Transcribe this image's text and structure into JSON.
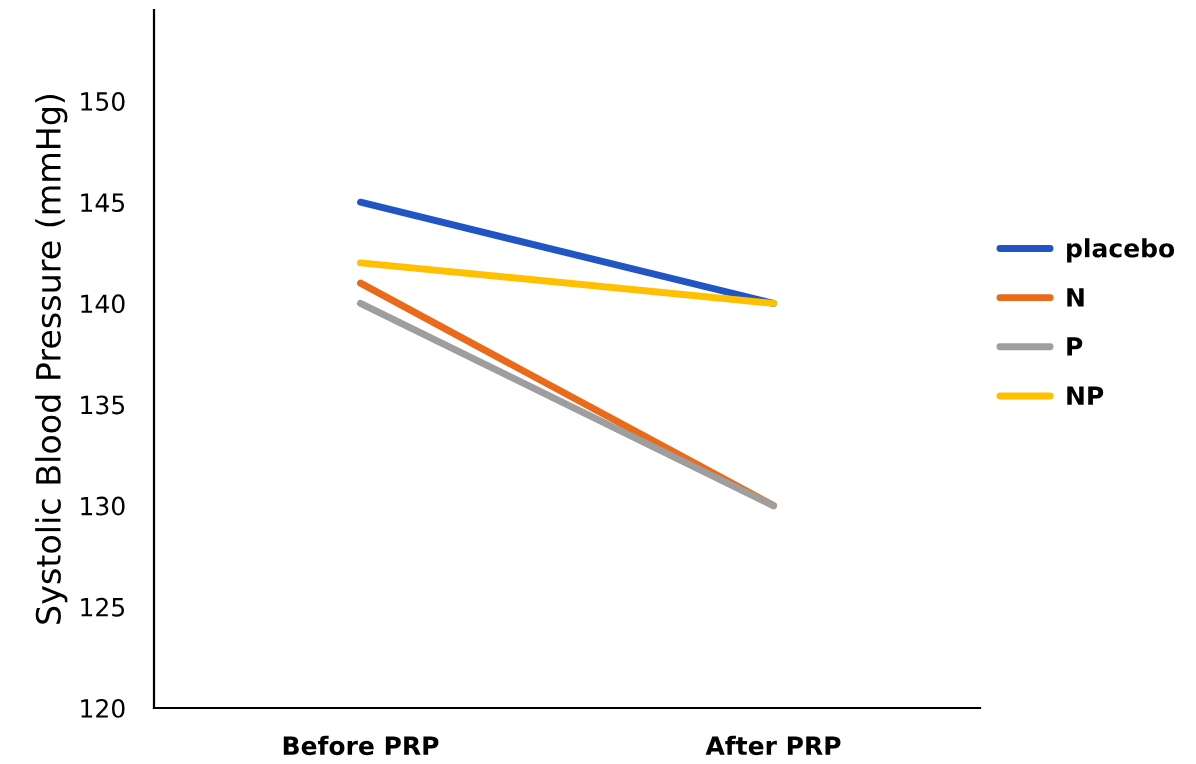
{
  "chart_data": {
    "type": "line",
    "ylabel": "Systolic Blood Pressure (mmHg)",
    "categories": [
      "Before PRP",
      "After PRP"
    ],
    "series": [
      {
        "name": "placebo",
        "color": "#2255c4",
        "values": [
          145,
          140
        ]
      },
      {
        "name": "N",
        "color": "#ea6a1a",
        "values": [
          141,
          130
        ]
      },
      {
        "name": "P",
        "color": "#9e9e9e",
        "values": [
          140,
          130
        ]
      },
      {
        "name": "NP",
        "color": "#ffc000",
        "values": [
          142,
          140
        ]
      }
    ],
    "ylim": [
      120,
      154.5
    ],
    "yticks": [
      120,
      125,
      130,
      135,
      140,
      145,
      150
    ],
    "grid": false,
    "legend": "right",
    "marker": "none",
    "line_style": "solid"
  }
}
